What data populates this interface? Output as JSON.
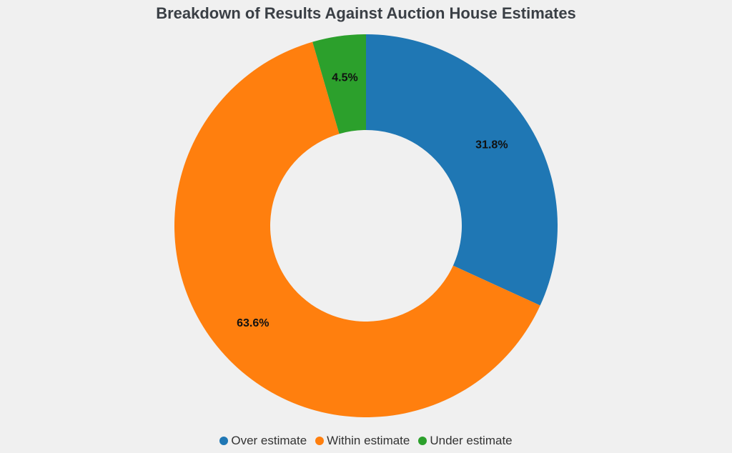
{
  "chart_data": {
    "type": "pie",
    "title": "Breakdown of Results Against Auction House Estimates",
    "donut": true,
    "categories": [
      "Over estimate",
      "Within estimate",
      "Under estimate"
    ],
    "values": [
      31.8,
      63.6,
      4.5
    ],
    "value_labels": [
      "31.8%",
      "63.6%",
      "4.5%"
    ],
    "colors": [
      "#1f77b4",
      "#ff7f0e",
      "#2ca02c"
    ],
    "start_angle": "12 o'clock",
    "direction": "clockwise",
    "legend_position": "bottom-center"
  }
}
